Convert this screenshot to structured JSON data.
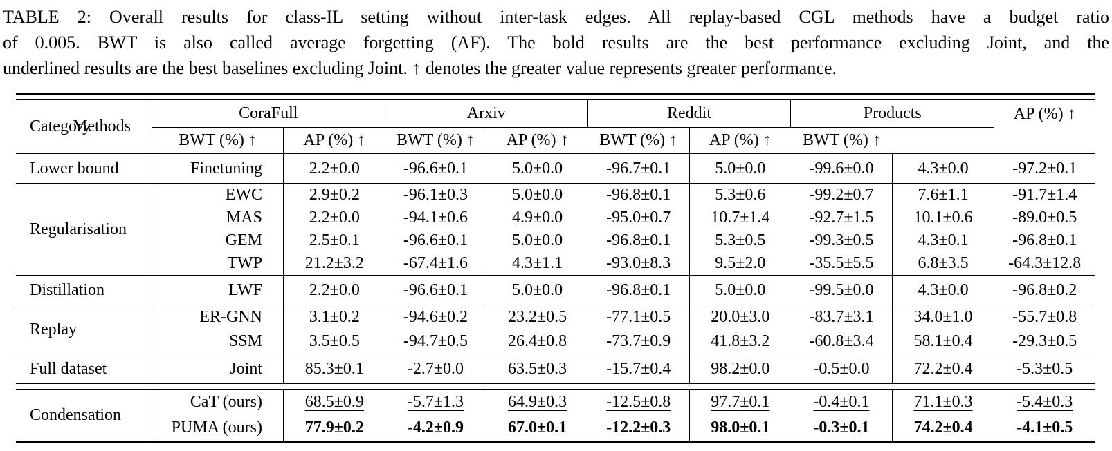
{
  "caption": {
    "label": "TABLE 2",
    "lines": [
      "TABLE 2: Overall results for class-IL setting without inter-task edges. All replay-based CGL methods have a budget ratio",
      "of 0.005. BWT is also called average forgetting (AF). The bold results are the best performance excluding Joint, and the",
      "underlined results are the best baselines excluding Joint. ↑ denotes the greater value represents greater performance."
    ]
  },
  "table": {
    "header": {
      "category": "Category",
      "methods": "Methods",
      "groups": [
        "CoraFull",
        "Arxiv",
        "Reddit",
        "Products"
      ],
      "ap": "AP (%) ↑",
      "bwt": "BWT (%) ↑"
    },
    "text_color": "#000000",
    "background_color": "#ffffff",
    "sections": [
      {
        "category": "Lower bound",
        "rows": [
          {
            "method": "Finetuning",
            "style": "normal",
            "values": [
              "2.2±0.0",
              "-96.6±0.1",
              "5.0±0.0",
              "-96.7±0.1",
              "5.0±0.0",
              "-99.6±0.0",
              "4.3±0.0",
              "-97.2±0.1"
            ]
          }
        ]
      },
      {
        "category": "Regularisation",
        "rows": [
          {
            "method": "EWC",
            "style": "normal",
            "values": [
              "2.9±0.2",
              "-96.1±0.3",
              "5.0±0.0",
              "-96.8±0.1",
              "5.3±0.6",
              "-99.2±0.7",
              "7.6±1.1",
              "-91.7±1.4"
            ]
          },
          {
            "method": "MAS",
            "style": "normal",
            "values": [
              "2.2±0.0",
              "-94.1±0.6",
              "4.9±0.0",
              "-95.0±0.7",
              "10.7±1.4",
              "-92.7±1.5",
              "10.1±0.6",
              "-89.0±0.5"
            ]
          },
          {
            "method": "GEM",
            "style": "normal",
            "values": [
              "2.5±0.1",
              "-96.6±0.1",
              "5.0±0.0",
              "-96.8±0.1",
              "5.3±0.5",
              "-99.3±0.5",
              "4.3±0.1",
              "-96.8±0.1"
            ]
          },
          {
            "method": "TWP",
            "style": "normal",
            "values": [
              "21.2±3.2",
              "-67.4±1.6",
              "4.3±1.1",
              "-93.0±8.3",
              "9.5±2.0",
              "-35.5±5.5",
              "6.8±3.5",
              "-64.3±12.8"
            ]
          }
        ]
      },
      {
        "category": "Distillation",
        "rows": [
          {
            "method": "LWF",
            "style": "normal",
            "values": [
              "2.2±0.0",
              "-96.6±0.1",
              "5.0±0.0",
              "-96.8±0.1",
              "5.0±0.0",
              "-99.5±0.0",
              "4.3±0.0",
              "-96.8±0.2"
            ]
          }
        ]
      },
      {
        "category": "Replay",
        "rows": [
          {
            "method": "ER-GNN",
            "style": "normal",
            "values": [
              "3.1±0.2",
              "-94.6±0.2",
              "23.2±0.5",
              "-77.1±0.5",
              "20.0±3.0",
              "-83.7±3.1",
              "34.0±1.0",
              "-55.7±0.8"
            ]
          },
          {
            "method": "SSM",
            "style": "normal",
            "values": [
              "3.5±0.5",
              "-94.7±0.5",
              "26.4±0.8",
              "-73.7±0.9",
              "41.8±3.2",
              "-60.8±3.4",
              "58.1±0.4",
              "-29.3±0.5"
            ]
          }
        ]
      },
      {
        "category": "Full dataset",
        "rows": [
          {
            "method": "Joint",
            "style": "normal",
            "values": [
              "85.3±0.1",
              "-2.7±0.0",
              "63.5±0.3",
              "-15.7±0.4",
              "98.2±0.0",
              "-0.5±0.0",
              "72.2±0.4",
              "-5.3±0.5"
            ]
          }
        ]
      },
      {
        "category": "Condensation",
        "rows": [
          {
            "method": "CaT (ours)",
            "style": "underlined",
            "values": [
              "68.5±0.9",
              "-5.7±1.3",
              "64.9±0.3",
              "-12.5±0.8",
              "97.7±0.1",
              "-0.4±0.1",
              "71.1±0.3",
              "-5.4±0.3"
            ]
          },
          {
            "method": "PUMA (ours)",
            "style": "bold",
            "values": [
              "77.9±0.2",
              "-4.2±0.9",
              "67.0±0.1",
              "-12.2±0.3",
              "98.0±0.1",
              "-0.3±0.1",
              "74.2±0.4",
              "-4.1±0.5"
            ]
          }
        ]
      }
    ]
  }
}
